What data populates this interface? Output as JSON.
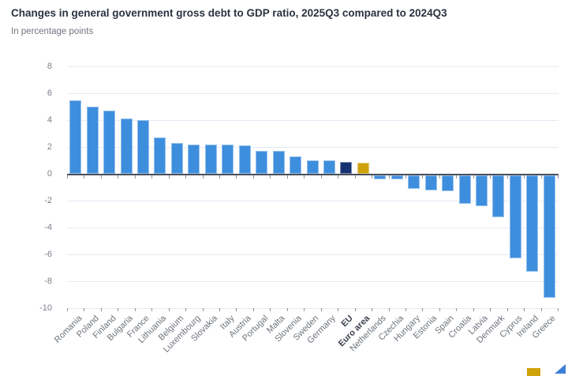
{
  "chart_data": {
    "type": "bar",
    "title": "Changes in general government gross debt to GDP ratio, 2025Q3 compared to 2024Q3",
    "subtitle": "In percentage points",
    "categories": [
      "Romania",
      "Poland",
      "Finland",
      "Bulgaria",
      "France",
      "Lithuania",
      "Belgium",
      "Luxembourg",
      "Slovakia",
      "Italy",
      "Austria",
      "Portugal",
      "Malta",
      "Slovenia",
      "Sweden",
      "Germany",
      "EU",
      "Euro area",
      "Netherlands",
      "Czechia",
      "Hungary",
      "Estonia",
      "Spain",
      "Croatia",
      "Latvia",
      "Denmark",
      "Cyprus",
      "Ireland",
      "Greece"
    ],
    "values": [
      5.5,
      5.0,
      4.7,
      4.1,
      4.0,
      2.7,
      2.3,
      2.2,
      2.2,
      2.2,
      2.1,
      1.7,
      1.7,
      1.3,
      1.0,
      1.0,
      0.9,
      0.8,
      -0.3,
      -0.3,
      -1.0,
      -1.1,
      -1.2,
      -2.1,
      -2.3,
      -3.1,
      -6.2,
      -7.2,
      -9.1
    ],
    "xlabel": "",
    "ylabel": "",
    "yticks": [
      8,
      6,
      4,
      2,
      0,
      -2,
      -4,
      -6,
      -8,
      -10
    ],
    "ylim": [
      -10,
      8
    ],
    "grid": true,
    "legend_position": "bottom (clipped out of view at screenshot edge)",
    "bar_color": "#3E8EDE",
    "highlight_colors": {
      "EU": "#16316F",
      "Euro area": "#CFA20B"
    },
    "bold_categories": [
      "EU",
      "Euro area"
    ],
    "footer_fragments": {
      "gold_swatch_color": "#CFA20B",
      "blue_triangle_color": "#3E7FD6"
    }
  }
}
